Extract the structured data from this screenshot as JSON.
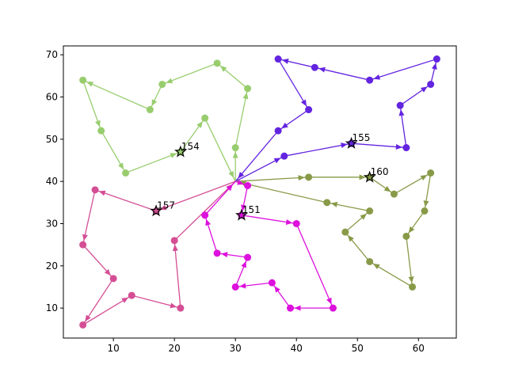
{
  "chart_data": {
    "type": "route",
    "xlim": [
      1.8,
      66.2
    ],
    "ylim": [
      2.9,
      72.1
    ],
    "xticks": [
      10,
      20,
      30,
      40,
      50,
      60
    ],
    "yticks": [
      10,
      20,
      30,
      40,
      50,
      60,
      70
    ],
    "series": [
      {
        "color": "#98cd6e",
        "x": [
          30,
          30,
          32,
          27,
          18,
          16,
          5,
          8,
          12,
          21,
          25,
          30
        ],
        "y": [
          40,
          48,
          62,
          68,
          63,
          57,
          64,
          52,
          42,
          47,
          55,
          40
        ]
      },
      {
        "color": "#6324e0",
        "x": [
          30,
          38,
          49,
          58,
          57,
          62,
          63,
          52,
          43,
          37,
          42,
          37,
          30
        ],
        "y": [
          40,
          46,
          49,
          48,
          58,
          63,
          69,
          64,
          67,
          69,
          57,
          52,
          40
        ]
      },
      {
        "color": "#889a48",
        "x": [
          30,
          42,
          52,
          56,
          62,
          61,
          58,
          59,
          52,
          48,
          52,
          45,
          30
        ],
        "y": [
          40,
          41,
          41,
          37,
          42,
          33,
          27,
          15,
          21,
          28,
          33,
          35,
          40
        ]
      },
      {
        "color": "#d44e94",
        "x": [
          30,
          17,
          7,
          5,
          10,
          5,
          13,
          21,
          20,
          30
        ],
        "y": [
          40,
          33,
          38,
          25,
          17,
          6,
          13,
          10,
          26,
          40
        ]
      },
      {
        "color": "#dd10dd",
        "x": [
          30,
          32,
          31,
          40,
          46,
          39,
          36,
          30,
          32,
          27,
          25,
          30
        ],
        "y": [
          40,
          39,
          32,
          30,
          10,
          10,
          16,
          15,
          22,
          23,
          32,
          40
        ]
      }
    ],
    "annotations": [
      {
        "x": 21,
        "y": 47,
        "text": "154"
      },
      {
        "x": 49,
        "y": 49,
        "text": "155"
      },
      {
        "x": 52,
        "y": 41,
        "text": "160"
      },
      {
        "x": 17,
        "y": 33,
        "text": "157"
      },
      {
        "x": 31,
        "y": 32,
        "text": "151"
      }
    ]
  }
}
